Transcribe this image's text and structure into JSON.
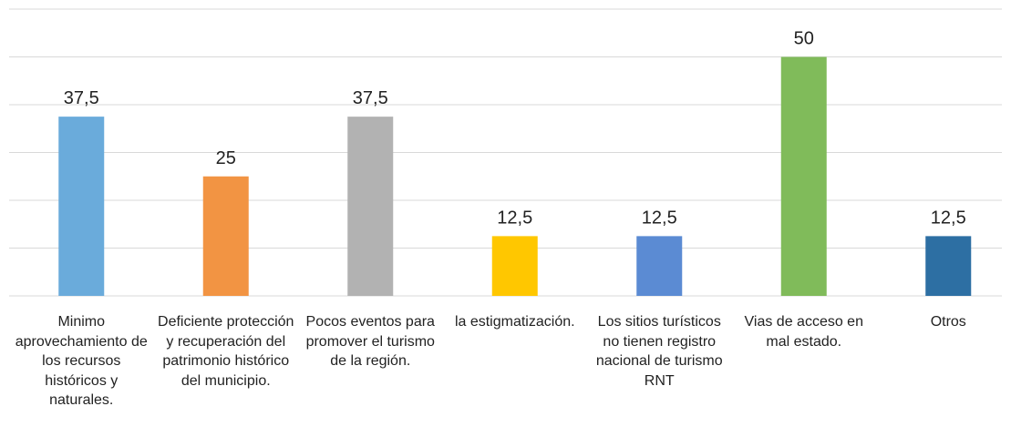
{
  "chart_data": {
    "type": "bar",
    "categories": [
      "Minimo aprovechamiento de los recursos históricos y naturales.",
      "Deficiente protección y recuperación del patrimonio histórico del municipio.",
      "Pocos eventos para promover el turismo de la región.",
      "la estigmatización.",
      "Los sitios turísticos no tienen registro nacional de turismo RNT",
      "Vias de acceso en mal estado.",
      "Otros"
    ],
    "values": [
      37.5,
      25,
      37.5,
      12.5,
      12.5,
      50,
      12.5
    ],
    "value_labels": [
      "37,5",
      "25",
      "37,5",
      "12,5",
      "12,5",
      "50",
      "12,5"
    ],
    "colors": [
      "#6aabdb",
      "#f29443",
      "#b2b2b2",
      "#ffc700",
      "#5b8bd3",
      "#80bb5a",
      "#2d6fa3"
    ],
    "ylim": [
      0,
      60
    ],
    "yticks": [
      0,
      10,
      20,
      30,
      40,
      50,
      60
    ],
    "grid": true
  }
}
